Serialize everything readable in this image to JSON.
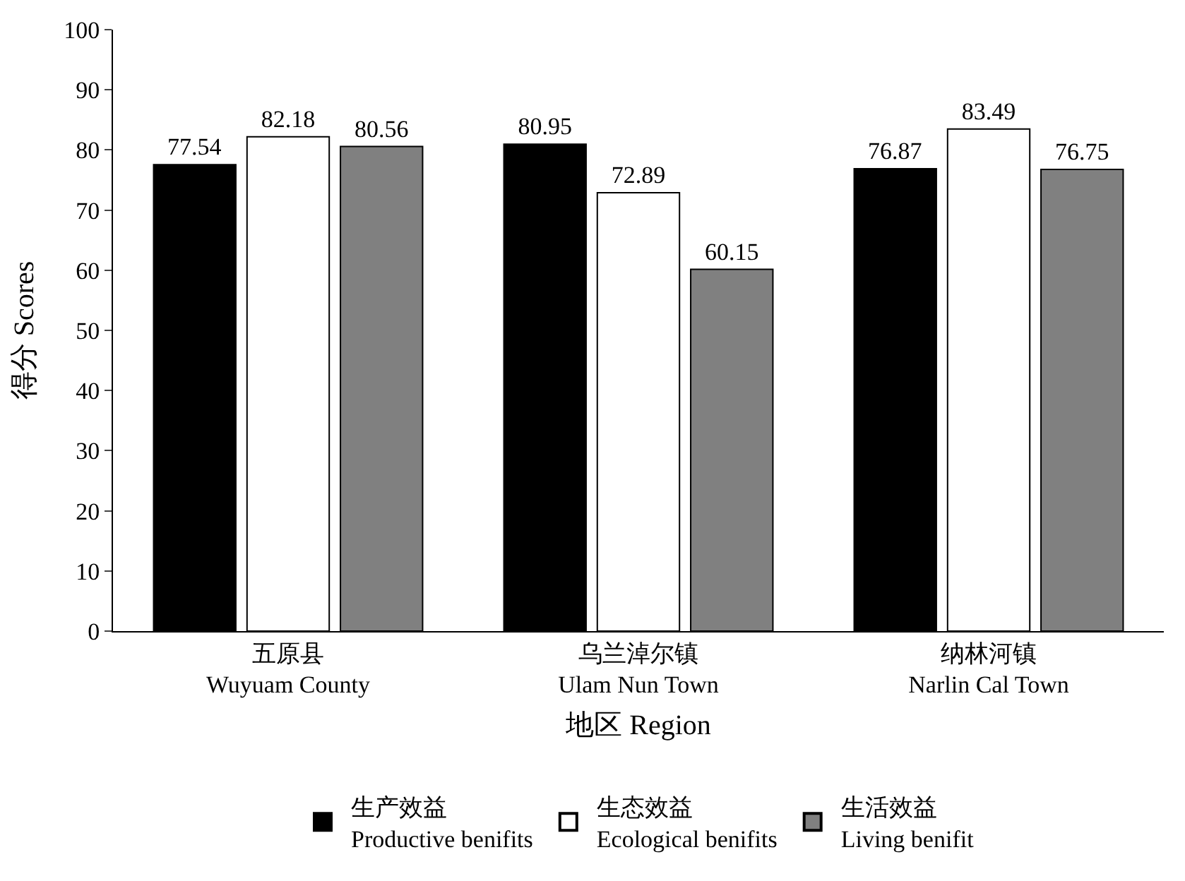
{
  "chart_data": {
    "type": "bar",
    "xlabel": "地区 Region",
    "ylabel": "得分 Scores",
    "categories": [
      "五原县\nWuyuam County",
      "乌兰淖尔镇\nUlam Nun Town",
      "纳林河镇\nNarlin Cal Town"
    ],
    "series": [
      {
        "name": "生产效益\nProductive benifits",
        "color": "#000000",
        "values": [
          77.54,
          80.95,
          76.87
        ]
      },
      {
        "name": "生态效益\nEcological benifits",
        "color": "#ffffff",
        "values": [
          82.18,
          72.89,
          83.49
        ]
      },
      {
        "name": "生活效益\nLiving benifit",
        "color": "#808080",
        "values": [
          80.56,
          60.15,
          76.75
        ]
      }
    ],
    "ylim": [
      0,
      100
    ],
    "yticks": [
      0,
      10,
      20,
      30,
      40,
      50,
      60,
      70,
      80,
      90,
      100
    ],
    "data_labels": true,
    "legend": "bottom"
  }
}
